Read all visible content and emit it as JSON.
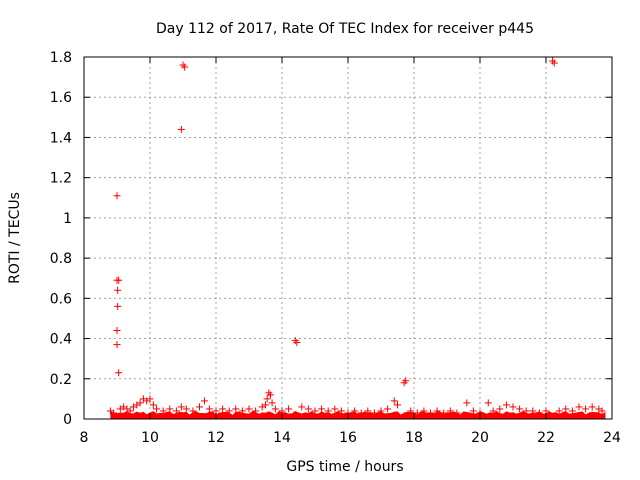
{
  "chart_data": {
    "type": "scatter",
    "title": "Day 112 of 2017, Rate Of TEC Index for receiver p445",
    "xlabel": "GPS time / hours",
    "ylabel": "ROTI / TECUs",
    "xlim": [
      8,
      24
    ],
    "ylim": [
      0,
      1.8
    ],
    "xticks": [
      "8",
      "10",
      "12",
      "14",
      "16",
      "18",
      "20",
      "22",
      "24"
    ],
    "yticks": [
      "0",
      "0.2",
      "0.4",
      "0.6",
      "0.8",
      "1",
      "1.2",
      "1.4",
      "1.6",
      "1.8"
    ],
    "grid": true,
    "marker": "+",
    "color": "#ff0000",
    "series": [
      {
        "points": [
          [
            8.8,
            0.04
          ],
          [
            8.9,
            0.03
          ],
          [
            9.0,
            1.11
          ],
          [
            9.0,
            0.69
          ],
          [
            9.05,
            0.69
          ],
          [
            9.02,
            0.64
          ],
          [
            9.02,
            0.56
          ],
          [
            9.0,
            0.44
          ],
          [
            9.0,
            0.37
          ],
          [
            9.05,
            0.23
          ],
          [
            9.1,
            0.05
          ],
          [
            9.2,
            0.06
          ],
          [
            9.3,
            0.05
          ],
          [
            9.4,
            0.04
          ],
          [
            9.5,
            0.06
          ],
          [
            9.6,
            0.07
          ],
          [
            9.7,
            0.08
          ],
          [
            9.8,
            0.1
          ],
          [
            9.9,
            0.09
          ],
          [
            10.0,
            0.1
          ],
          [
            10.1,
            0.07
          ],
          [
            10.2,
            0.05
          ],
          [
            10.4,
            0.04
          ],
          [
            10.6,
            0.05
          ],
          [
            10.8,
            0.04
          ],
          [
            10.95,
            0.06
          ],
          [
            11.0,
            1.76
          ],
          [
            11.05,
            1.75
          ],
          [
            10.95,
            1.44
          ],
          [
            11.1,
            0.05
          ],
          [
            11.3,
            0.04
          ],
          [
            11.5,
            0.06
          ],
          [
            11.65,
            0.09
          ],
          [
            11.8,
            0.05
          ],
          [
            12.0,
            0.04
          ],
          [
            12.2,
            0.05
          ],
          [
            12.4,
            0.04
          ],
          [
            12.6,
            0.05
          ],
          [
            12.8,
            0.04
          ],
          [
            13.0,
            0.05
          ],
          [
            13.2,
            0.04
          ],
          [
            13.4,
            0.06
          ],
          [
            13.5,
            0.07
          ],
          [
            13.55,
            0.1
          ],
          [
            13.6,
            0.13
          ],
          [
            13.65,
            0.12
          ],
          [
            13.7,
            0.08
          ],
          [
            13.8,
            0.05
          ],
          [
            14.0,
            0.04
          ],
          [
            14.2,
            0.05
          ],
          [
            14.4,
            0.39
          ],
          [
            14.45,
            0.38
          ],
          [
            14.6,
            0.06
          ],
          [
            14.8,
            0.05
          ],
          [
            15.0,
            0.04
          ],
          [
            15.2,
            0.05
          ],
          [
            15.4,
            0.04
          ],
          [
            15.6,
            0.05
          ],
          [
            15.8,
            0.04
          ],
          [
            16.0,
            0.03
          ],
          [
            16.2,
            0.04
          ],
          [
            16.4,
            0.03
          ],
          [
            16.6,
            0.04
          ],
          [
            16.8,
            0.03
          ],
          [
            17.0,
            0.04
          ],
          [
            17.2,
            0.05
          ],
          [
            17.4,
            0.09
          ],
          [
            17.5,
            0.07
          ],
          [
            17.7,
            0.18
          ],
          [
            17.75,
            0.19
          ],
          [
            17.9,
            0.04
          ],
          [
            18.1,
            0.03
          ],
          [
            18.3,
            0.04
          ],
          [
            18.5,
            0.03
          ],
          [
            18.7,
            0.04
          ],
          [
            18.9,
            0.03
          ],
          [
            19.1,
            0.04
          ],
          [
            19.3,
            0.03
          ],
          [
            19.6,
            0.08
          ],
          [
            19.8,
            0.04
          ],
          [
            20.0,
            0.03
          ],
          [
            20.25,
            0.08
          ],
          [
            20.4,
            0.04
          ],
          [
            20.6,
            0.05
          ],
          [
            20.8,
            0.07
          ],
          [
            21.0,
            0.06
          ],
          [
            21.2,
            0.05
          ],
          [
            21.4,
            0.04
          ],
          [
            21.6,
            0.04
          ],
          [
            21.8,
            0.03
          ],
          [
            22.0,
            0.04
          ],
          [
            22.2,
            1.78
          ],
          [
            22.25,
            1.77
          ],
          [
            22.4,
            0.04
          ],
          [
            22.6,
            0.05
          ],
          [
            22.8,
            0.04
          ],
          [
            23.0,
            0.06
          ],
          [
            23.2,
            0.05
          ],
          [
            23.4,
            0.06
          ],
          [
            23.6,
            0.05
          ],
          [
            23.7,
            0.04
          ]
        ]
      }
    ]
  }
}
